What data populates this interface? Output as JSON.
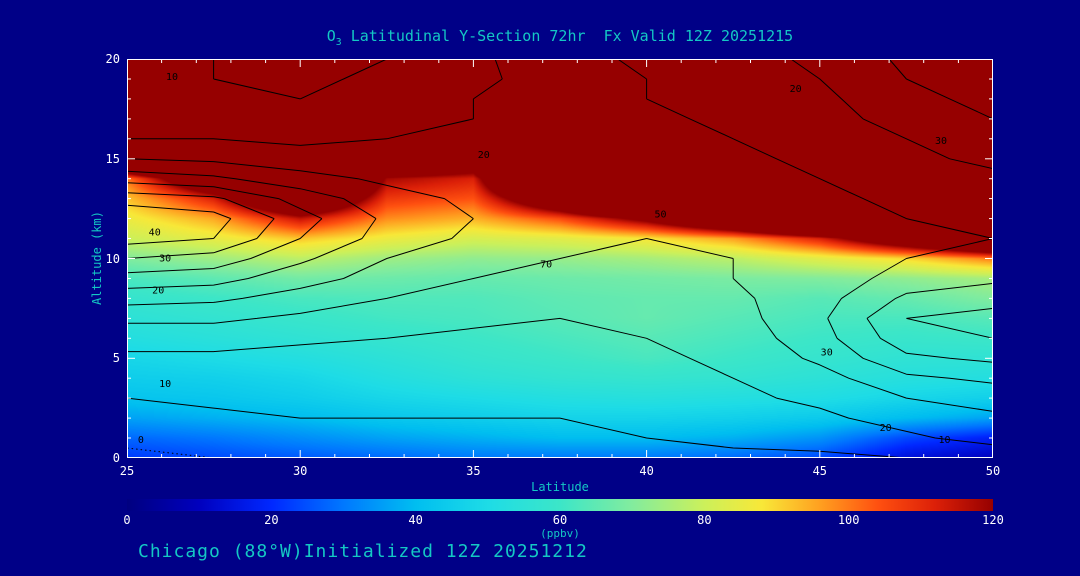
{
  "page": {
    "background": "#000087",
    "text_color": "#14C8C4",
    "tick_color": "#FFFFFF",
    "title": {
      "prefix": "O",
      "sub": "3",
      "rest": " Latitudinal Y-Section 72hr  Fx Valid 12Z 20251215"
    },
    "caption": "Chicago (88°W)Initialized 12Z 20251212"
  },
  "chart_data": {
    "type": "heatmap",
    "title": "O3 Latitudinal Y-Section 72hr Fx Valid 12Z 20251215",
    "subtitle": "Chicago (88°W) Initialized 12Z 20251212",
    "xlabel": "Latitude",
    "ylabel": "Altitude (km)",
    "colorbar_label": "(ppbv)",
    "xlim": [
      25,
      50
    ],
    "ylim": [
      0,
      20
    ],
    "clim": [
      0,
      120
    ],
    "x_ticks": [
      25,
      30,
      35,
      40,
      45,
      50
    ],
    "y_ticks": [
      0,
      5,
      10,
      15,
      20
    ],
    "colorbar_ticks": [
      0,
      20,
      40,
      60,
      80,
      100,
      120
    ],
    "grid": false,
    "lat": [
      25,
      27.5,
      30,
      32.5,
      35,
      37.5,
      40,
      42.5,
      45,
      47.5,
      50
    ],
    "alt": [
      0,
      1,
      2,
      3,
      4,
      5,
      6,
      7,
      8,
      9,
      10,
      11,
      12,
      13,
      14,
      15,
      16,
      17,
      18,
      19,
      20
    ],
    "ozone_ppbv": [
      [
        22,
        24,
        26,
        28,
        30,
        30,
        30,
        28,
        24,
        14,
        10
      ],
      [
        28,
        30,
        33,
        36,
        38,
        40,
        40,
        38,
        34,
        24,
        18
      ],
      [
        36,
        38,
        40,
        43,
        45,
        47,
        47,
        46,
        44,
        40,
        36
      ],
      [
        42,
        43,
        45,
        48,
        50,
        52,
        53,
        52,
        51,
        48,
        46
      ],
      [
        45,
        46,
        48,
        52,
        55,
        57,
        58,
        57,
        55,
        53,
        52
      ],
      [
        48,
        50,
        52,
        55,
        58,
        60,
        62,
        60,
        58,
        56,
        56
      ],
      [
        52,
        54,
        56,
        58,
        60,
        62,
        64,
        62,
        60,
        59,
        60
      ],
      [
        55,
        57,
        59,
        61,
        62,
        64,
        66,
        64,
        62,
        62,
        64
      ],
      [
        58,
        60,
        62,
        63,
        63,
        65,
        66,
        66,
        64,
        66,
        70
      ],
      [
        62,
        65,
        68,
        67,
        66,
        67,
        68,
        69,
        70,
        72,
        75
      ],
      [
        70,
        74,
        78,
        74,
        72,
        73,
        75,
        78,
        84,
        90,
        100
      ],
      [
        80,
        85,
        92,
        86,
        82,
        84,
        88,
        96,
        112,
        140,
        170
      ],
      [
        86,
        95,
        115,
        98,
        94,
        105,
        125,
        155,
        195,
        235,
        265
      ],
      [
        92,
        112,
        155,
        108,
        104,
        145,
        195,
        245,
        295,
        330,
        355
      ],
      [
        100,
        148,
        200,
        118,
        112,
        200,
        275,
        320,
        350,
        380,
        400
      ],
      [
        175,
        215,
        275,
        158,
        140,
        295,
        345,
        380,
        400,
        400,
        400
      ],
      [
        245,
        295,
        335,
        285,
        260,
        360,
        390,
        400,
        400,
        400,
        400
      ],
      [
        300,
        340,
        370,
        360,
        355,
        390,
        400,
        400,
        400,
        400,
        400
      ],
      [
        345,
        370,
        390,
        395,
        395,
        400,
        400,
        400,
        400,
        400,
        400
      ],
      [
        375,
        390,
        400,
        400,
        400,
        400,
        400,
        400,
        400,
        400,
        400
      ],
      [
        400,
        400,
        400,
        400,
        400,
        400,
        400,
        400,
        400,
        400,
        400
      ]
    ],
    "colormap": [
      [
        0,
        "#000080"
      ],
      [
        10,
        "#0000BE"
      ],
      [
        20,
        "#0028FF"
      ],
      [
        30,
        "#0078FF"
      ],
      [
        40,
        "#00BEF0"
      ],
      [
        50,
        "#1EDCE6"
      ],
      [
        60,
        "#3CE6C8"
      ],
      [
        70,
        "#82EC9E"
      ],
      [
        80,
        "#CCF05A"
      ],
      [
        88,
        "#F8E838"
      ],
      [
        96,
        "#FFA020"
      ],
      [
        104,
        "#FF5010"
      ],
      [
        112,
        "#DC2008"
      ],
      [
        120,
        "#960000"
      ]
    ],
    "contour_overlay": {
      "levels": [
        0,
        5,
        10,
        15,
        20,
        25,
        30,
        35,
        40
      ],
      "values": [
        [
          -1,
          0,
          1,
          2,
          2,
          2,
          3,
          4,
          4,
          5,
          6
        ],
        [
          1,
          2,
          3,
          4,
          4,
          4,
          5,
          6,
          7,
          9,
          12
        ],
        [
          3,
          4,
          5,
          5,
          5,
          5,
          6,
          8,
          9,
          12,
          14
        ],
        [
          5,
          6,
          6,
          6,
          6,
          6,
          7,
          9,
          11,
          15,
          17
        ],
        [
          7,
          7,
          7,
          7,
          7,
          7,
          8,
          10,
          13,
          19,
          21
        ],
        [
          9,
          9,
          8,
          8,
          8,
          8,
          9,
          11,
          16,
          24,
          26
        ],
        [
          12,
          12,
          11,
          10,
          9,
          9,
          10,
          12,
          18,
          28,
          30
        ],
        [
          16,
          16,
          14,
          12,
          11,
          10,
          11,
          13,
          19,
          30,
          32
        ],
        [
          22,
          21,
          18,
          15,
          13,
          12,
          12,
          14,
          18,
          26,
          28
        ],
        [
          28,
          27,
          22,
          18,
          15,
          14,
          13,
          15,
          17,
          22,
          24
        ],
        [
          35,
          33,
          26,
          20,
          17,
          15,
          14,
          15,
          17,
          20,
          21
        ],
        [
          42,
          40,
          30,
          23,
          19,
          17,
          15,
          16,
          17,
          19,
          20
        ],
        [
          44,
          42,
          32,
          24,
          20,
          18,
          16,
          17,
          18,
          20,
          21
        ],
        [
          38,
          36,
          28,
          22,
          19,
          18,
          17,
          18,
          19,
          21,
          22
        ],
        [
          28,
          26,
          22,
          19,
          18,
          18,
          18,
          19,
          20,
          22,
          24
        ],
        [
          20,
          19,
          17,
          17,
          17,
          18,
          18,
          19,
          21,
          24,
          26
        ],
        [
          15,
          15,
          14,
          15,
          16,
          17,
          19,
          20,
          22,
          25,
          28
        ],
        [
          12,
          12,
          12,
          13,
          15,
          17,
          19,
          21,
          23,
          27,
          30
        ],
        [
          10,
          10,
          10,
          12,
          15,
          17,
          20,
          21,
          24,
          28,
          32
        ],
        [
          11,
          10,
          9,
          11,
          14,
          17,
          20,
          22,
          25,
          30,
          34
        ],
        [
          12,
          10,
          8,
          10,
          14,
          18,
          21,
          23,
          26,
          31,
          35
        ]
      ],
      "labels": [
        {
          "text": "10",
          "lat": 26.3,
          "alt": 19.1
        },
        {
          "text": "20",
          "lat": 44.3,
          "alt": 18.5
        },
        {
          "text": "30",
          "lat": 48.5,
          "alt": 15.9
        },
        {
          "text": "20",
          "lat": 35.3,
          "alt": 15.2
        },
        {
          "text": "40",
          "lat": 25.8,
          "alt": 11.3
        },
        {
          "text": "30",
          "lat": 26.1,
          "alt": 10.0
        },
        {
          "text": "20",
          "lat": 25.9,
          "alt": 8.4
        },
        {
          "text": "10",
          "lat": 26.1,
          "alt": 3.7
        },
        {
          "text": "0",
          "lat": 25.4,
          "alt": 0.9
        },
        {
          "text": "70",
          "lat": 37.1,
          "alt": 9.7
        },
        {
          "text": "50",
          "lat": 40.4,
          "alt": 12.2
        },
        {
          "text": "30",
          "lat": 45.2,
          "alt": 5.3
        },
        {
          "text": "20",
          "lat": 46.9,
          "alt": 1.5
        },
        {
          "text": "10",
          "lat": 48.6,
          "alt": 0.9
        }
      ]
    }
  }
}
